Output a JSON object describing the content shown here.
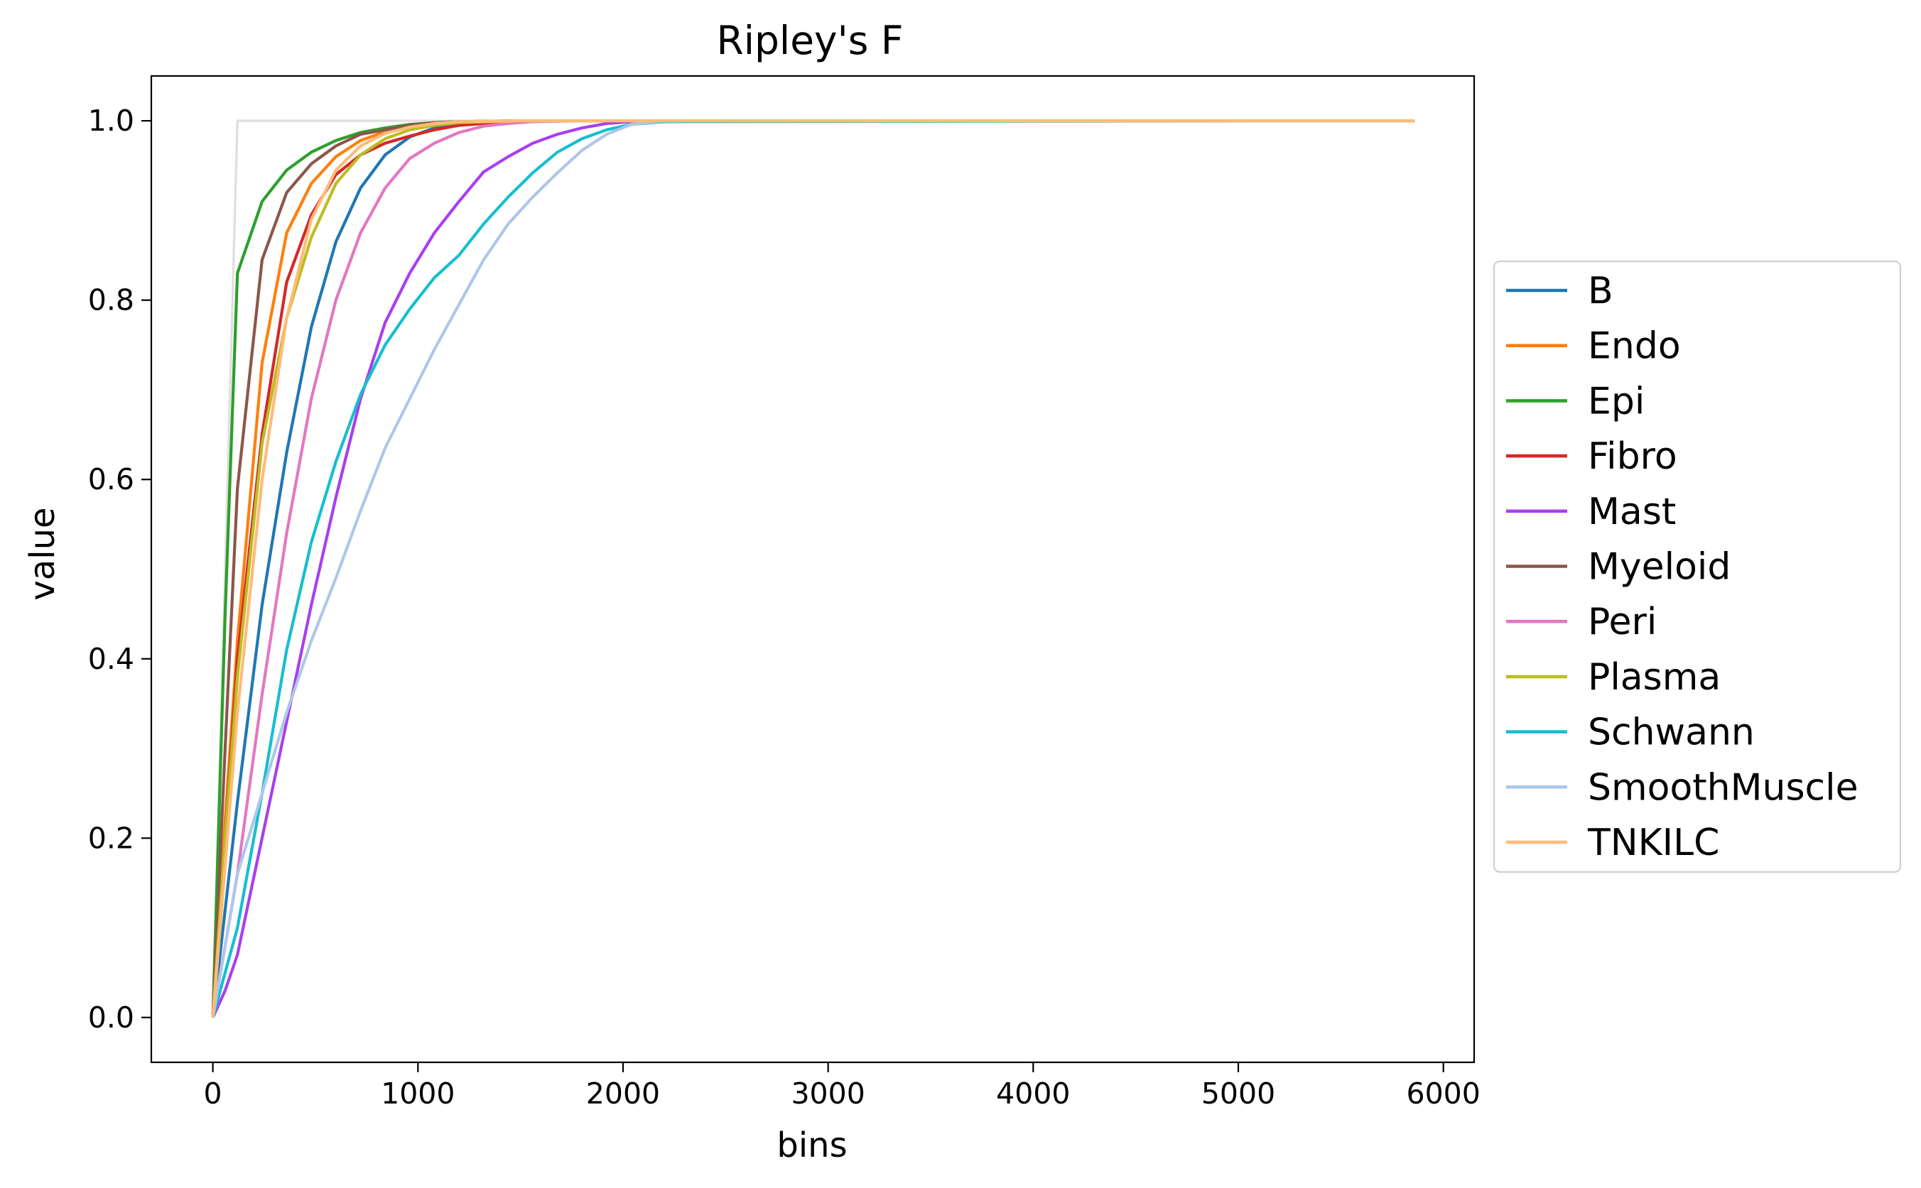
{
  "chart_data": {
    "type": "line",
    "title": "Ripley's F",
    "xlabel": "bins",
    "ylabel": "value",
    "xlim": [
      -300,
      6150
    ],
    "ylim": [
      -0.05,
      1.05
    ],
    "xticks": [
      0,
      1000,
      2000,
      3000,
      4000,
      5000,
      6000
    ],
    "yticks": [
      0.0,
      0.2,
      0.4,
      0.6,
      0.8,
      1.0
    ],
    "xtick_labels": [
      "0",
      "1000",
      "2000",
      "3000",
      "4000",
      "5000",
      "6000"
    ],
    "ytick_labels": [
      "0.0",
      "0.2",
      "0.4",
      "0.6",
      "0.8",
      "1.0"
    ],
    "grid": false,
    "legend_position": "right-outside",
    "reference_line": {
      "color": "#e0e0e0",
      "x": [
        0,
        120,
        5860
      ],
      "y": [
        0,
        1.0,
        1.0
      ]
    },
    "series": [
      {
        "name": "B",
        "color": "#1f77b4",
        "x": [
          0,
          60,
          120,
          240,
          360,
          480,
          600,
          720,
          840,
          960,
          1080,
          1200,
          1500,
          2000,
          5860
        ],
        "y": [
          0,
          0.12,
          0.24,
          0.46,
          0.63,
          0.77,
          0.865,
          0.925,
          0.962,
          0.982,
          0.992,
          0.997,
          1.0,
          1.0,
          1.0
        ]
      },
      {
        "name": "Endo",
        "color": "#ff7f0e",
        "x": [
          0,
          60,
          120,
          240,
          360,
          480,
          600,
          720,
          840,
          960,
          1080,
          1200,
          1500,
          2000,
          5860
        ],
        "y": [
          0,
          0.22,
          0.42,
          0.73,
          0.875,
          0.93,
          0.96,
          0.978,
          0.988,
          0.994,
          0.997,
          0.999,
          1.0,
          1.0,
          1.0
        ]
      },
      {
        "name": "Epi",
        "color": "#2ca02c",
        "x": [
          0,
          60,
          120,
          240,
          360,
          480,
          600,
          720,
          840,
          960,
          1080,
          1200,
          1500,
          2000,
          5860
        ],
        "y": [
          0,
          0.45,
          0.83,
          0.91,
          0.945,
          0.965,
          0.978,
          0.987,
          0.992,
          0.996,
          0.998,
          0.999,
          1.0,
          1.0,
          1.0
        ]
      },
      {
        "name": "Fibro",
        "color": "#d62728",
        "x": [
          0,
          60,
          120,
          240,
          360,
          480,
          600,
          720,
          840,
          960,
          1080,
          1200,
          1500,
          2000,
          5860
        ],
        "y": [
          0,
          0.2,
          0.4,
          0.65,
          0.82,
          0.895,
          0.94,
          0.962,
          0.975,
          0.983,
          0.99,
          0.995,
          1.0,
          1.0,
          1.0
        ]
      },
      {
        "name": "Mast",
        "color": "#a83ff0",
        "x": [
          0,
          60,
          120,
          240,
          360,
          480,
          600,
          720,
          840,
          960,
          1080,
          1200,
          1320,
          1440,
          1560,
          1680,
          1800,
          1920,
          2040,
          2200,
          5860
        ],
        "y": [
          0,
          0.03,
          0.07,
          0.2,
          0.33,
          0.46,
          0.58,
          0.69,
          0.775,
          0.83,
          0.875,
          0.91,
          0.943,
          0.96,
          0.975,
          0.985,
          0.992,
          0.997,
          0.999,
          1.0,
          1.0
        ]
      },
      {
        "name": "Myeloid",
        "color": "#8c564b",
        "x": [
          0,
          60,
          120,
          240,
          360,
          480,
          600,
          720,
          840,
          960,
          1080,
          1200,
          1500,
          2000,
          5860
        ],
        "y": [
          0,
          0.3,
          0.59,
          0.845,
          0.92,
          0.952,
          0.972,
          0.985,
          0.99,
          0.995,
          0.998,
          0.999,
          1.0,
          1.0,
          1.0
        ]
      },
      {
        "name": "Peri",
        "color": "#e377c2",
        "x": [
          0,
          60,
          120,
          240,
          360,
          480,
          600,
          720,
          840,
          960,
          1080,
          1200,
          1320,
          1440,
          1560,
          1800,
          5860
        ],
        "y": [
          0,
          0.08,
          0.16,
          0.36,
          0.54,
          0.69,
          0.8,
          0.875,
          0.925,
          0.958,
          0.975,
          0.987,
          0.994,
          0.997,
          0.999,
          1.0,
          1.0
        ]
      },
      {
        "name": "Plasma",
        "color": "#bcbd22",
        "x": [
          0,
          60,
          120,
          240,
          360,
          480,
          600,
          720,
          840,
          960,
          1080,
          1200,
          1500,
          2000,
          5860
        ],
        "y": [
          0,
          0.2,
          0.38,
          0.64,
          0.78,
          0.87,
          0.93,
          0.962,
          0.98,
          0.99,
          0.995,
          0.998,
          1.0,
          1.0,
          1.0
        ]
      },
      {
        "name": "Schwann",
        "color": "#17becf",
        "x": [
          0,
          60,
          120,
          240,
          360,
          480,
          600,
          720,
          840,
          960,
          1080,
          1200,
          1320,
          1440,
          1560,
          1680,
          1800,
          1920,
          2040,
          2200,
          5860
        ],
        "y": [
          0,
          0.05,
          0.1,
          0.25,
          0.41,
          0.53,
          0.62,
          0.695,
          0.75,
          0.79,
          0.825,
          0.85,
          0.885,
          0.915,
          0.942,
          0.965,
          0.98,
          0.99,
          0.996,
          0.999,
          1.0
        ]
      },
      {
        "name": "SmoothMuscle",
        "color": "#aec7e8",
        "x": [
          0,
          60,
          120,
          240,
          360,
          480,
          600,
          720,
          840,
          960,
          1080,
          1200,
          1320,
          1440,
          1560,
          1680,
          1800,
          1920,
          2040,
          2200,
          5860
        ],
        "y": [
          0,
          0.08,
          0.16,
          0.25,
          0.34,
          0.42,
          0.49,
          0.565,
          0.635,
          0.69,
          0.745,
          0.795,
          0.845,
          0.885,
          0.915,
          0.942,
          0.967,
          0.985,
          0.996,
          1.0,
          1.0
        ]
      },
      {
        "name": "TNKILC",
        "color": "#ffbb78",
        "x": [
          0,
          60,
          120,
          240,
          360,
          480,
          600,
          720,
          840,
          960,
          1080,
          1200,
          1500,
          2000,
          5860
        ],
        "y": [
          0,
          0.17,
          0.34,
          0.6,
          0.78,
          0.89,
          0.945,
          0.972,
          0.986,
          0.993,
          0.997,
          0.999,
          1.0,
          1.0,
          1.0
        ]
      }
    ]
  }
}
